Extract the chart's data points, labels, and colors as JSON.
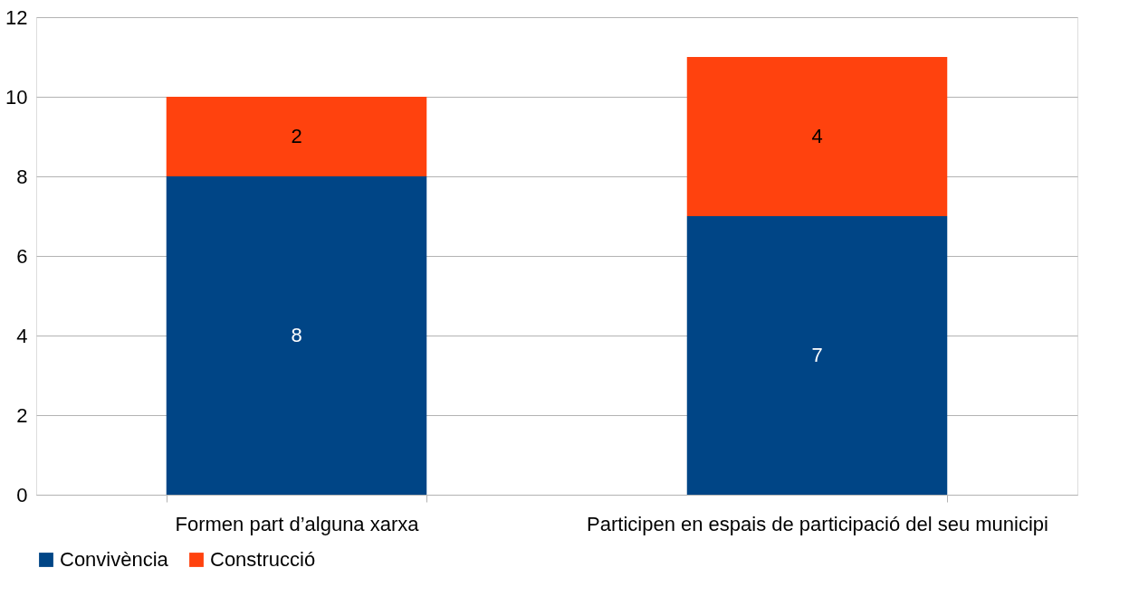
{
  "chart_data": {
    "type": "bar",
    "stacked": true,
    "categories": [
      "Formen part d’alguna xarxa",
      "Participen en espais de participació del seu municipi"
    ],
    "series": [
      {
        "name": "Convivència",
        "color": "#004586",
        "values": [
          8,
          7
        ]
      },
      {
        "name": "Construcció",
        "color": "#ff420e",
        "values": [
          2,
          4
        ]
      }
    ],
    "ylim": [
      0,
      12
    ],
    "yticks": [
      0,
      2,
      4,
      6,
      8,
      10,
      12
    ],
    "grid": "y",
    "legend": "bottom",
    "data_labels": true
  }
}
